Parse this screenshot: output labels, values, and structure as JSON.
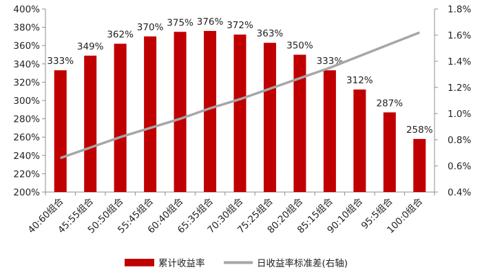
{
  "chart_data": {
    "type": "bar",
    "categories": [
      "40:60组合",
      "45:55组合",
      "50:50组合",
      "55:45组合",
      "60:40组合",
      "65:35组合",
      "70:30组合",
      "75:25组合",
      "80:20组合",
      "85:15组合",
      "90:10组合",
      "95:5组合",
      "100:0组合"
    ],
    "series": [
      {
        "name": "累计收益率",
        "type": "bar",
        "axis": "left",
        "color": "#C00000",
        "values": [
          333,
          349,
          362,
          370,
          375,
          376,
          372,
          363,
          350,
          333,
          312,
          287,
          258
        ],
        "labels": [
          "333%",
          "349%",
          "362%",
          "370%",
          "375%",
          "376%",
          "372%",
          "363%",
          "350%",
          "333%",
          "312%",
          "287%",
          "258%"
        ]
      },
      {
        "name": "日收益率标准差(右轴)",
        "type": "line",
        "axis": "right",
        "color": "#A6A6A6",
        "values": [
          0.66,
          0.74,
          0.82,
          0.89,
          0.96,
          1.04,
          1.11,
          1.19,
          1.27,
          1.35,
          1.44,
          1.53,
          1.62
        ]
      }
    ],
    "y_left": {
      "min": 200,
      "max": 400,
      "ticks": [
        200,
        220,
        240,
        260,
        280,
        300,
        320,
        340,
        360,
        380,
        400
      ],
      "tick_labels": [
        "200%",
        "220%",
        "240%",
        "260%",
        "280%",
        "300%",
        "320%",
        "340%",
        "360%",
        "380%",
        "400%"
      ]
    },
    "y_right": {
      "min": 0.4,
      "max": 1.8,
      "ticks": [
        0.4,
        0.6,
        0.8,
        1.0,
        1.2,
        1.4,
        1.6,
        1.8
      ],
      "tick_labels": [
        "0.4%",
        "0.6%",
        "0.8%",
        "1.0%",
        "1.2%",
        "1.4%",
        "1.6%",
        "1.8%"
      ]
    },
    "grid": false,
    "legend_position": "bottom"
  }
}
